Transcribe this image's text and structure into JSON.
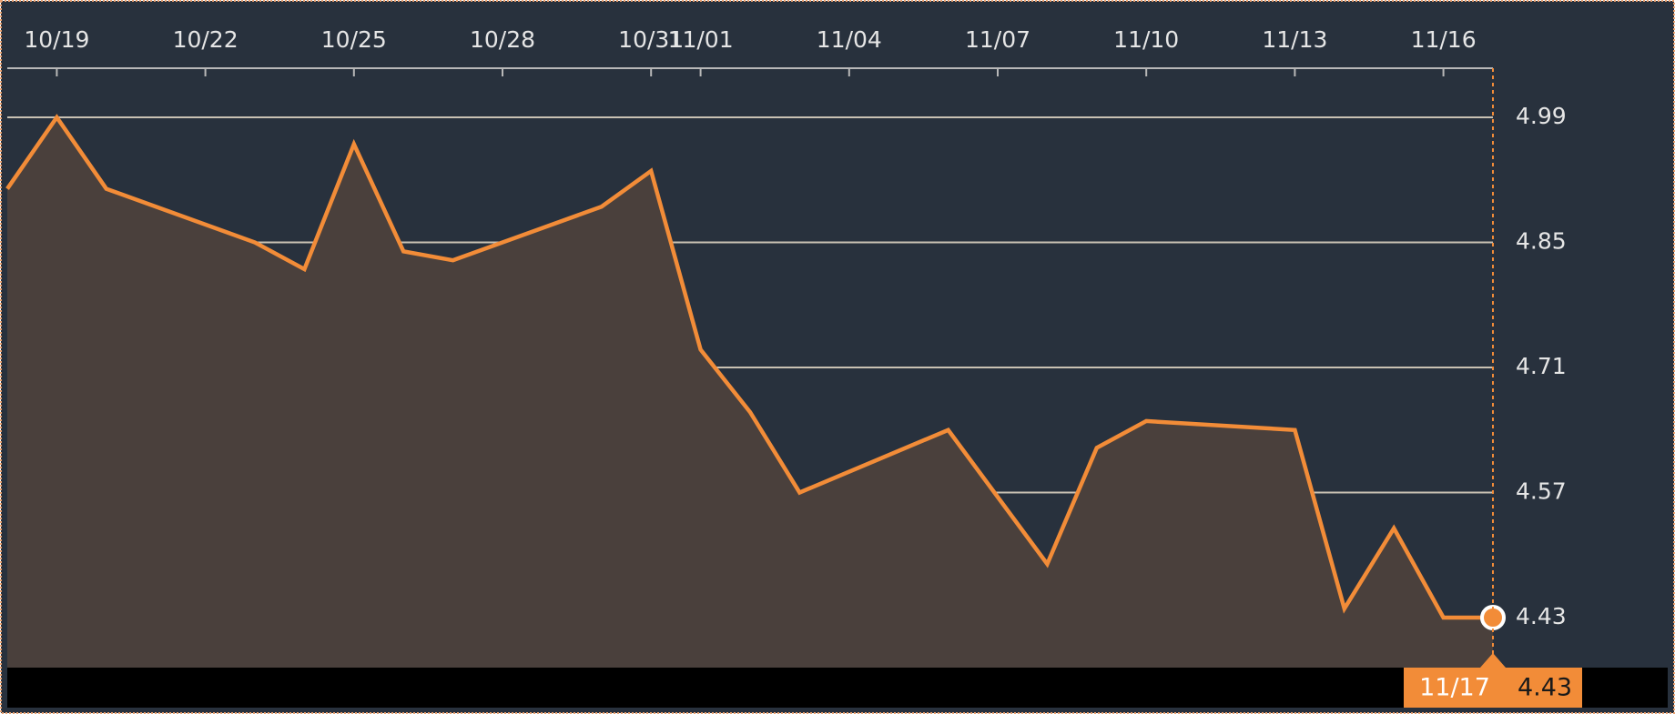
{
  "chart_data": {
    "type": "area",
    "x": [
      "10/18",
      "10/19",
      "10/20",
      "10/23",
      "10/24",
      "10/25",
      "10/26",
      "10/27",
      "10/30",
      "10/31",
      "11/01",
      "11/02",
      "11/03",
      "11/06",
      "11/08",
      "11/09",
      "11/10",
      "11/13",
      "11/14",
      "11/15",
      "11/16",
      "11/17"
    ],
    "series": [
      {
        "color": "#f28c38",
        "fill": "#4a403c",
        "values": [
          4.91,
          4.99,
          4.91,
          4.85,
          4.82,
          4.96,
          4.84,
          4.83,
          4.89,
          4.93,
          4.73,
          4.66,
          4.57,
          4.64,
          4.49,
          4.62,
          4.65,
          4.64,
          4.44,
          4.53,
          4.43,
          4.43
        ]
      }
    ],
    "xlim": [
      "10/18",
      "11/17"
    ],
    "xticks": [
      "10/19",
      "10/22",
      "10/25",
      "10/28",
      "10/31",
      "11/01",
      "11/04",
      "11/07",
      "11/10",
      "11/13",
      "11/16"
    ],
    "ylim": [
      4.374,
      5.045
    ],
    "yticks": [
      4.43,
      4.57,
      4.71,
      4.85,
      4.99
    ],
    "grid": true
  }
}
